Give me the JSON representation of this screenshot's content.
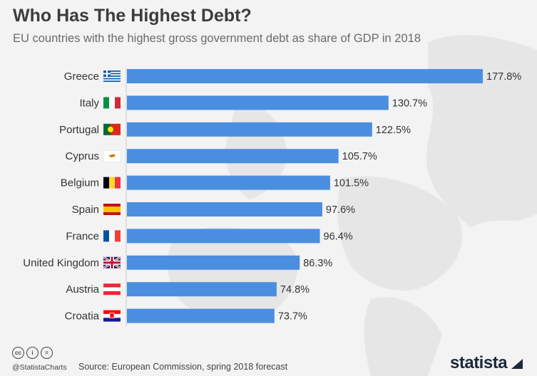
{
  "title": "Who Has The Highest Debt?",
  "subtitle": "EU countries with the highest gross government debt as share of GDP in 2018",
  "chart_data": {
    "type": "bar",
    "orientation": "horizontal",
    "title": "Who Has The Highest Debt?",
    "subtitle": "EU countries with the highest gross government debt as share of GDP in 2018",
    "xlabel": "",
    "ylabel": "",
    "unit": "%",
    "categories": [
      "Greece",
      "Italy",
      "Portugal",
      "Cyprus",
      "Belgium",
      "Spain",
      "France",
      "United Kingdom",
      "Austria",
      "Croatia"
    ],
    "values": [
      177.8,
      130.7,
      122.5,
      105.7,
      101.5,
      97.6,
      96.4,
      86.3,
      74.8,
      73.7
    ],
    "value_labels": [
      "177.8%",
      "130.7%",
      "122.5%",
      "105.7%",
      "101.5%",
      "97.6%",
      "96.4%",
      "86.3%",
      "74.8%",
      "73.7%"
    ],
    "flags": [
      "greece-flag-icon",
      "italy-flag-icon",
      "portugal-flag-icon",
      "cyprus-flag-icon",
      "belgium-flag-icon",
      "spain-flag-icon",
      "france-flag-icon",
      "uk-flag-icon",
      "austria-flag-icon",
      "croatia-flag-icon"
    ],
    "xlim": [
      0,
      177.8
    ],
    "bar_color": "#4a8ee0"
  },
  "footer": {
    "handle": "@StatistaCharts",
    "source": "Source: European Commission, spring 2018 forecast",
    "brand": "statista",
    "license_icons": [
      "cc-icon",
      "by-icon",
      "nd-icon"
    ]
  },
  "colors": {
    "bar": "#4a8ee0",
    "background": "#f3f3f3",
    "map": "#e4e4e4"
  }
}
